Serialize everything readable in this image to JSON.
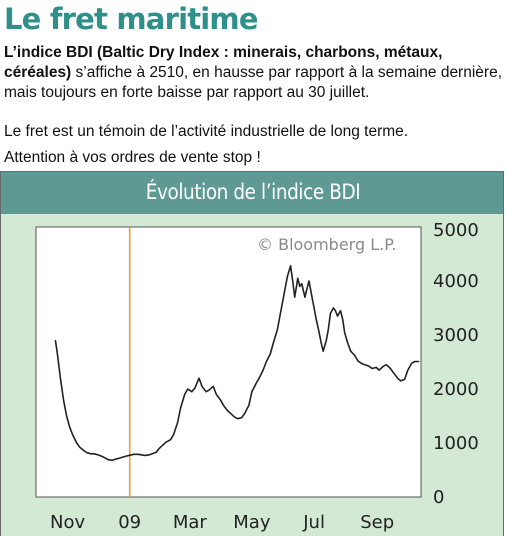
{
  "article": {
    "title": "Le fret maritime",
    "p1_bold1": "L’indice BDI (Baltic Dry Index : minerais, charbons, métaux,",
    "p1_bold2": "céréales)",
    "p1_rest": " s’affiche à 2510, en hausse par rapport à la semaine dernière, mais toujours en forte baisse par rapport au 30 juillet.",
    "p2": "Le fret est un témoin de l’activité industrielle de long terme.",
    "p3": "Attention à vos ordres de vente stop !"
  },
  "colors": {
    "title": "#2f8f8a",
    "chart_background": "#d4e9d4",
    "chart_header": "#5e9a93",
    "line": "#222222",
    "marker": "#f0a030"
  },
  "chart_data": {
    "type": "line",
    "title": "Évolution de l’indice BDI",
    "watermark": "© Bloomberg L.P.",
    "x_tick_labels": [
      "Nov",
      "09",
      "Mar",
      "May",
      "Jul",
      "Sep"
    ],
    "y_ticks": [
      0,
      1000,
      2000,
      3000,
      4000,
      5000
    ],
    "ylim": [
      0,
      5000
    ],
    "y_axis_side": "right",
    "grid": false,
    "marker_line_at": "09",
    "series": [
      {
        "name": "",
        "x": [
          "2008-10-20",
          "2008-10-22",
          "2008-10-25",
          "2008-10-28",
          "2008-10-31",
          "2008-11-03",
          "2008-11-06",
          "2008-11-10",
          "2008-11-13",
          "2008-11-17",
          "2008-11-20",
          "2008-11-24",
          "2008-11-27",
          "2008-12-01",
          "2008-12-04",
          "2008-12-08",
          "2008-12-11",
          "2008-12-15",
          "2008-12-18",
          "2008-12-22",
          "2008-12-29",
          "2009-01-05",
          "2009-01-09",
          "2009-01-13",
          "2009-01-16",
          "2009-01-20",
          "2009-01-23",
          "2009-01-27",
          "2009-01-30",
          "2009-02-03",
          "2009-02-06",
          "2009-02-10",
          "2009-02-13",
          "2009-02-17",
          "2009-02-20",
          "2009-02-24",
          "2009-02-27",
          "2009-03-03",
          "2009-03-06",
          "2009-03-10",
          "2009-03-13",
          "2009-03-17",
          "2009-03-20",
          "2009-03-24",
          "2009-03-27",
          "2009-03-31",
          "2009-04-03",
          "2009-04-07",
          "2009-04-10",
          "2009-04-14",
          "2009-04-17",
          "2009-04-21",
          "2009-04-24",
          "2009-04-28",
          "2009-05-01",
          "2009-05-05",
          "2009-05-08",
          "2009-05-12",
          "2009-05-15",
          "2009-05-19",
          "2009-05-22",
          "2009-05-26",
          "2009-05-29",
          "2009-06-01",
          "2009-06-03",
          "2009-06-05",
          "2009-06-08",
          "2009-06-10",
          "2009-06-12",
          "2009-06-15",
          "2009-06-17",
          "2009-06-19",
          "2009-06-22",
          "2009-06-24",
          "2009-06-26",
          "2009-06-29",
          "2009-07-01",
          "2009-07-03",
          "2009-07-06",
          "2009-07-08",
          "2009-07-10",
          "2009-07-13",
          "2009-07-15",
          "2009-07-17",
          "2009-07-20",
          "2009-07-22",
          "2009-07-24",
          "2009-07-27",
          "2009-07-29",
          "2009-07-31",
          "2009-08-03",
          "2009-08-06",
          "2009-08-10",
          "2009-08-13",
          "2009-08-17",
          "2009-08-20",
          "2009-08-24",
          "2009-08-27",
          "2009-08-31",
          "2009-09-03",
          "2009-09-07",
          "2009-09-10",
          "2009-09-14",
          "2009-09-17",
          "2009-09-21",
          "2009-09-24",
          "2009-09-28",
          "2009-10-01",
          "2009-10-05",
          "2009-10-08",
          "2009-10-12"
        ],
        "y": [
          2900,
          2650,
          2200,
          1800,
          1500,
          1300,
          1150,
          1000,
          920,
          860,
          820,
          800,
          800,
          780,
          760,
          720,
          690,
          680,
          700,
          720,
          760,
          790,
          790,
          780,
          770,
          780,
          800,
          830,
          900,
          970,
          1020,
          1060,
          1150,
          1380,
          1650,
          1900,
          2000,
          1950,
          2020,
          2200,
          2050,
          1950,
          1980,
          2050,
          1900,
          1800,
          1700,
          1600,
          1550,
          1480,
          1450,
          1470,
          1550,
          1700,
          1950,
          2100,
          2200,
          2350,
          2500,
          2650,
          2850,
          3100,
          3400,
          3700,
          3900,
          4100,
          4280,
          4000,
          3700,
          4050,
          3900,
          3950,
          3700,
          3850,
          4000,
          3700,
          3500,
          3300,
          3050,
          2850,
          2700,
          2900,
          3100,
          3400,
          3500,
          3450,
          3350,
          3450,
          3300,
          3050,
          2850,
          2700,
          2620,
          2520,
          2470,
          2450,
          2420,
          2380,
          2400,
          2350,
          2420,
          2450,
          2380,
          2300,
          2200,
          2150,
          2180,
          2350,
          2480,
          2510,
          2510
        ]
      }
    ]
  }
}
